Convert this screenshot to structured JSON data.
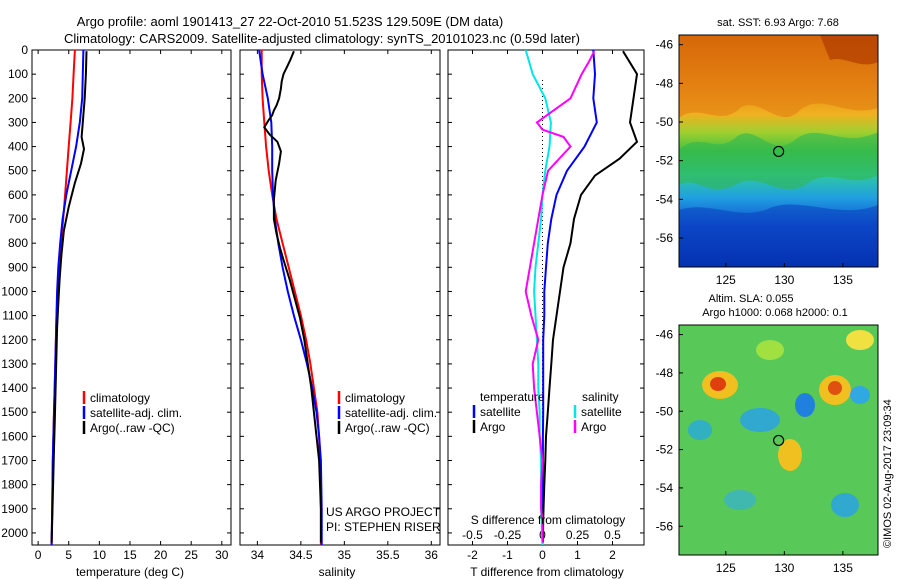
{
  "header": {
    "title": "Argo profile: aoml 1901413_27 22-Oct-2010 51.523S 129.509E (DM data)",
    "subtitle": "Climatology: CARS2009. Satellite-adjusted climatology: synTS_20101023.nc (0.59d later)"
  },
  "depth_ticks": [
    0,
    100,
    200,
    300,
    400,
    500,
    600,
    700,
    800,
    900,
    1000,
    1100,
    1200,
    1300,
    1400,
    1500,
    1600,
    1700,
    1800,
    1900,
    2000
  ],
  "chart_data": [
    {
      "type": "line",
      "panel": "temperature",
      "xlabel": "temperature (deg C)",
      "xlim": [
        -1,
        31.5
      ],
      "xticks": [
        0,
        5,
        10,
        15,
        20,
        25,
        30
      ],
      "xtick_labels": [
        "0",
        "5",
        "10",
        "15",
        "20",
        "25",
        "30"
      ],
      "ylim": [
        2050,
        0
      ],
      "legend": [
        "climatology",
        "satellite-adj. clim.",
        "Argo(..raw -QC)"
      ],
      "legend_colors": [
        "#ff0000",
        "#0000ff",
        "#000000"
      ],
      "series": [
        {
          "name": "climatology",
          "color": "#ff0000",
          "x": [
            6.0,
            5.8,
            5.6,
            5.3,
            5.0,
            4.7,
            4.4,
            4.1,
            3.7,
            3.4,
            3.2,
            3.0,
            2.9,
            2.8,
            2.7,
            2.6,
            2.5,
            2.4,
            2.3,
            2.2
          ],
          "y": [
            0,
            100,
            200,
            300,
            400,
            500,
            600,
            700,
            800,
            900,
            1000,
            1100,
            1200,
            1300,
            1400,
            1500,
            1600,
            1700,
            1900,
            2050
          ]
        },
        {
          "name": "satellite-adj. clim.",
          "color": "#0000ff",
          "x": [
            7.4,
            7.3,
            7.2,
            6.8,
            6.2,
            5.4,
            4.6,
            4.0,
            3.6,
            3.3,
            3.1,
            3.0,
            2.9,
            2.8,
            2.7,
            2.6,
            2.5,
            2.4,
            2.3,
            2.2
          ],
          "y": [
            0,
            100,
            200,
            300,
            400,
            500,
            600,
            700,
            800,
            900,
            1000,
            1100,
            1200,
            1300,
            1400,
            1500,
            1600,
            1700,
            1900,
            2050
          ]
        },
        {
          "name": "Argo(..raw -QC)",
          "color": "#000000",
          "x": [
            7.9,
            7.8,
            7.6,
            7.3,
            7.1,
            7.5,
            7.0,
            6.0,
            5.0,
            4.2,
            3.8,
            3.5,
            3.3,
            3.1,
            3.0,
            2.9,
            2.8,
            2.7,
            2.6,
            2.5,
            2.4,
            2.3,
            2.2
          ],
          "y": [
            5,
            100,
            200,
            300,
            360,
            410,
            470,
            550,
            650,
            750,
            850,
            950,
            1050,
            1150,
            1250,
            1350,
            1450,
            1550,
            1650,
            1750,
            1850,
            1950,
            2040
          ]
        }
      ]
    },
    {
      "type": "line",
      "panel": "salinity",
      "xlabel": "salinity",
      "xlim": [
        33.8,
        36.1
      ],
      "xticks": [
        34,
        34.5,
        35,
        35.5,
        36
      ],
      "xtick_labels": [
        "34",
        "34.5",
        "35",
        "35.5",
        "36"
      ],
      "ylim": [
        2050,
        0
      ],
      "legend": [
        "climatology",
        "satellite-adj. clim.",
        "Argo(..raw -QC)"
      ],
      "legend_colors": [
        "#ff0000",
        "#0000ff",
        "#000000"
      ],
      "annotation": [
        "US ARGO PROJECT",
        "PI: STEPHEN RISER"
      ],
      "series": [
        {
          "name": "climatology",
          "color": "#ff0000",
          "x": [
            34.05,
            34.05,
            34.06,
            34.08,
            34.1,
            34.13,
            34.17,
            34.22,
            34.29,
            34.36,
            34.43,
            34.5,
            34.56,
            34.61,
            34.65,
            34.69,
            34.71,
            34.72,
            34.73,
            34.73
          ],
          "y": [
            0,
            100,
            200,
            300,
            400,
            500,
            600,
            700,
            800,
            900,
            1000,
            1100,
            1200,
            1300,
            1400,
            1500,
            1600,
            1700,
            1900,
            2050
          ]
        },
        {
          "name": "satellite-adj. clim.",
          "color": "#0000ff",
          "x": [
            34.02,
            34.06,
            34.12,
            34.16,
            34.17,
            34.17,
            34.18,
            34.2,
            34.24,
            34.29,
            34.35,
            34.42,
            34.5,
            34.57,
            34.63,
            34.68,
            34.71,
            34.73,
            34.74,
            34.74
          ],
          "y": [
            0,
            100,
            200,
            300,
            400,
            500,
            600,
            700,
            800,
            900,
            1000,
            1100,
            1200,
            1300,
            1400,
            1500,
            1600,
            1700,
            1900,
            2050
          ]
        },
        {
          "name": "Argo(..raw -QC)",
          "color": "#000000",
          "x": [
            34.42,
            34.38,
            34.34,
            34.3,
            34.28,
            34.27,
            34.25,
            34.22,
            34.19,
            34.17,
            34.13,
            34.08,
            34.14,
            34.23,
            34.27,
            34.25,
            34.21,
            34.19,
            34.19,
            34.22,
            34.26,
            34.31,
            34.37,
            34.43,
            34.49,
            34.54,
            34.58,
            34.62,
            34.65,
            34.68,
            34.71,
            34.72,
            34.73,
            34.73
          ],
          "y": [
            5,
            40,
            70,
            100,
            130,
            160,
            200,
            230,
            250,
            270,
            290,
            320,
            350,
            380,
            420,
            470,
            540,
            620,
            700,
            760,
            820,
            880,
            950,
            1030,
            1110,
            1200,
            1300,
            1400,
            1500,
            1600,
            1700,
            1800,
            1900,
            2040
          ]
        }
      ]
    },
    {
      "type": "line",
      "panel": "differences",
      "xlabel": "T difference from climatology",
      "xlabel_top": "S difference from climatology",
      "xlim": [
        -2.7,
        2.9
      ],
      "xticks": [
        -2,
        -1,
        0,
        1,
        2
      ],
      "xtick_labels": [
        "-2",
        "-1",
        "0",
        "1",
        "2"
      ],
      "sticks": [
        -0.5,
        -0.25,
        0,
        0.25,
        0.5
      ],
      "stick_labels": [
        "-0.5",
        "-0.25",
        "0",
        "0.25",
        "0.5"
      ],
      "ylim": [
        2050,
        0
      ],
      "legend_groups": [
        {
          "title": "temperature",
          "entries": [
            "satellite",
            "Argo"
          ],
          "colors": [
            "#0000ff",
            "#000000"
          ]
        },
        {
          "title": "salinity",
          "entries": [
            "satellite",
            "Argo"
          ],
          "colors": [
            "#00e5e5",
            "#ff00ff"
          ]
        }
      ],
      "series": [
        {
          "name": "T satellite",
          "color": "#0000ff",
          "x": [
            1.45,
            1.5,
            1.45,
            1.55,
            1.2,
            0.7,
            0.4,
            0.25,
            0.15,
            0.1,
            0.05,
            0.05,
            0.02,
            0.02,
            0.02,
            0.02,
            0.01,
            0.01,
            0.01,
            0.0
          ],
          "y": [
            0,
            100,
            200,
            300,
            400,
            500,
            600,
            700,
            800,
            900,
            1000,
            1100,
            1200,
            1300,
            1400,
            1500,
            1600,
            1700,
            1900,
            2050
          ]
        },
        {
          "name": "T Argo",
          "color": "#000000",
          "x": [
            2.3,
            2.7,
            2.6,
            2.5,
            2.7,
            2.2,
            1.5,
            1.1,
            0.9,
            0.8,
            0.6,
            0.5,
            0.4,
            0.3,
            0.25,
            0.2,
            0.15,
            0.1,
            0.08,
            0.05,
            0.03,
            0.02,
            0.01
          ],
          "y": [
            5,
            100,
            200,
            300,
            380,
            450,
            520,
            600,
            700,
            800,
            900,
            1000,
            1100,
            1200,
            1300,
            1400,
            1500,
            1600,
            1700,
            1800,
            1900,
            1950,
            2040
          ]
        },
        {
          "name": "S satellite",
          "color": "#00e5e5",
          "x": [
            -0.12,
            -0.07,
            0.02,
            0.06,
            0.05,
            0.02,
            0.0,
            -0.01,
            -0.03,
            -0.05,
            -0.06,
            -0.05,
            -0.04,
            -0.03,
            -0.03,
            -0.02,
            -0.02,
            -0.01,
            -0.01,
            0.0
          ],
          "y": [
            0,
            100,
            200,
            300,
            400,
            500,
            600,
            700,
            800,
            900,
            1000,
            1100,
            1200,
            1300,
            1400,
            1500,
            1600,
            1700,
            1900,
            2050
          ]
        },
        {
          "name": "S Argo",
          "color": "#ff00ff",
          "x": [
            0.37,
            0.33,
            0.28,
            0.2,
            -0.04,
            0.0,
            0.15,
            0.2,
            0.04,
            0.0,
            -0.03,
            -0.06,
            -0.09,
            -0.12,
            -0.08,
            -0.03,
            -0.07,
            -0.06,
            -0.04,
            -0.02,
            0.0,
            -0.01,
            -0.01,
            0.0,
            0.0
          ],
          "y": [
            5,
            50,
            100,
            200,
            300,
            330,
            360,
            400,
            500,
            600,
            700,
            800,
            900,
            1000,
            1100,
            1200,
            1300,
            1400,
            1500,
            1600,
            1700,
            1800,
            1900,
            1950,
            2040
          ]
        }
      ]
    },
    {
      "type": "heatmap",
      "panel": "sst_map",
      "title": "sat. SST: 6.93 Argo: 7.68",
      "xlim": [
        121,
        138
      ],
      "ylim": [
        -57.5,
        -45.5
      ],
      "xticks": [
        125,
        130,
        135
      ],
      "yticks": [
        -46,
        -48,
        -50,
        -52,
        -54,
        -56
      ],
      "marker": {
        "lon": 129.509,
        "lat": -51.523
      }
    },
    {
      "type": "heatmap",
      "panel": "sla_map",
      "title": "Altim. SLA: 0.055",
      "subtitle": "Argo h1000: 0.068 h2000: 0.1",
      "xlim": [
        121,
        138
      ],
      "ylim": [
        -57.5,
        -45.5
      ],
      "xticks": [
        125,
        130,
        135
      ],
      "yticks": [
        -46,
        -48,
        -50,
        -52,
        -54,
        -56
      ],
      "marker": {
        "lon": 129.509,
        "lat": -51.523
      }
    }
  ],
  "credit": "©IMOS 02-Aug-2017 23:09:34"
}
